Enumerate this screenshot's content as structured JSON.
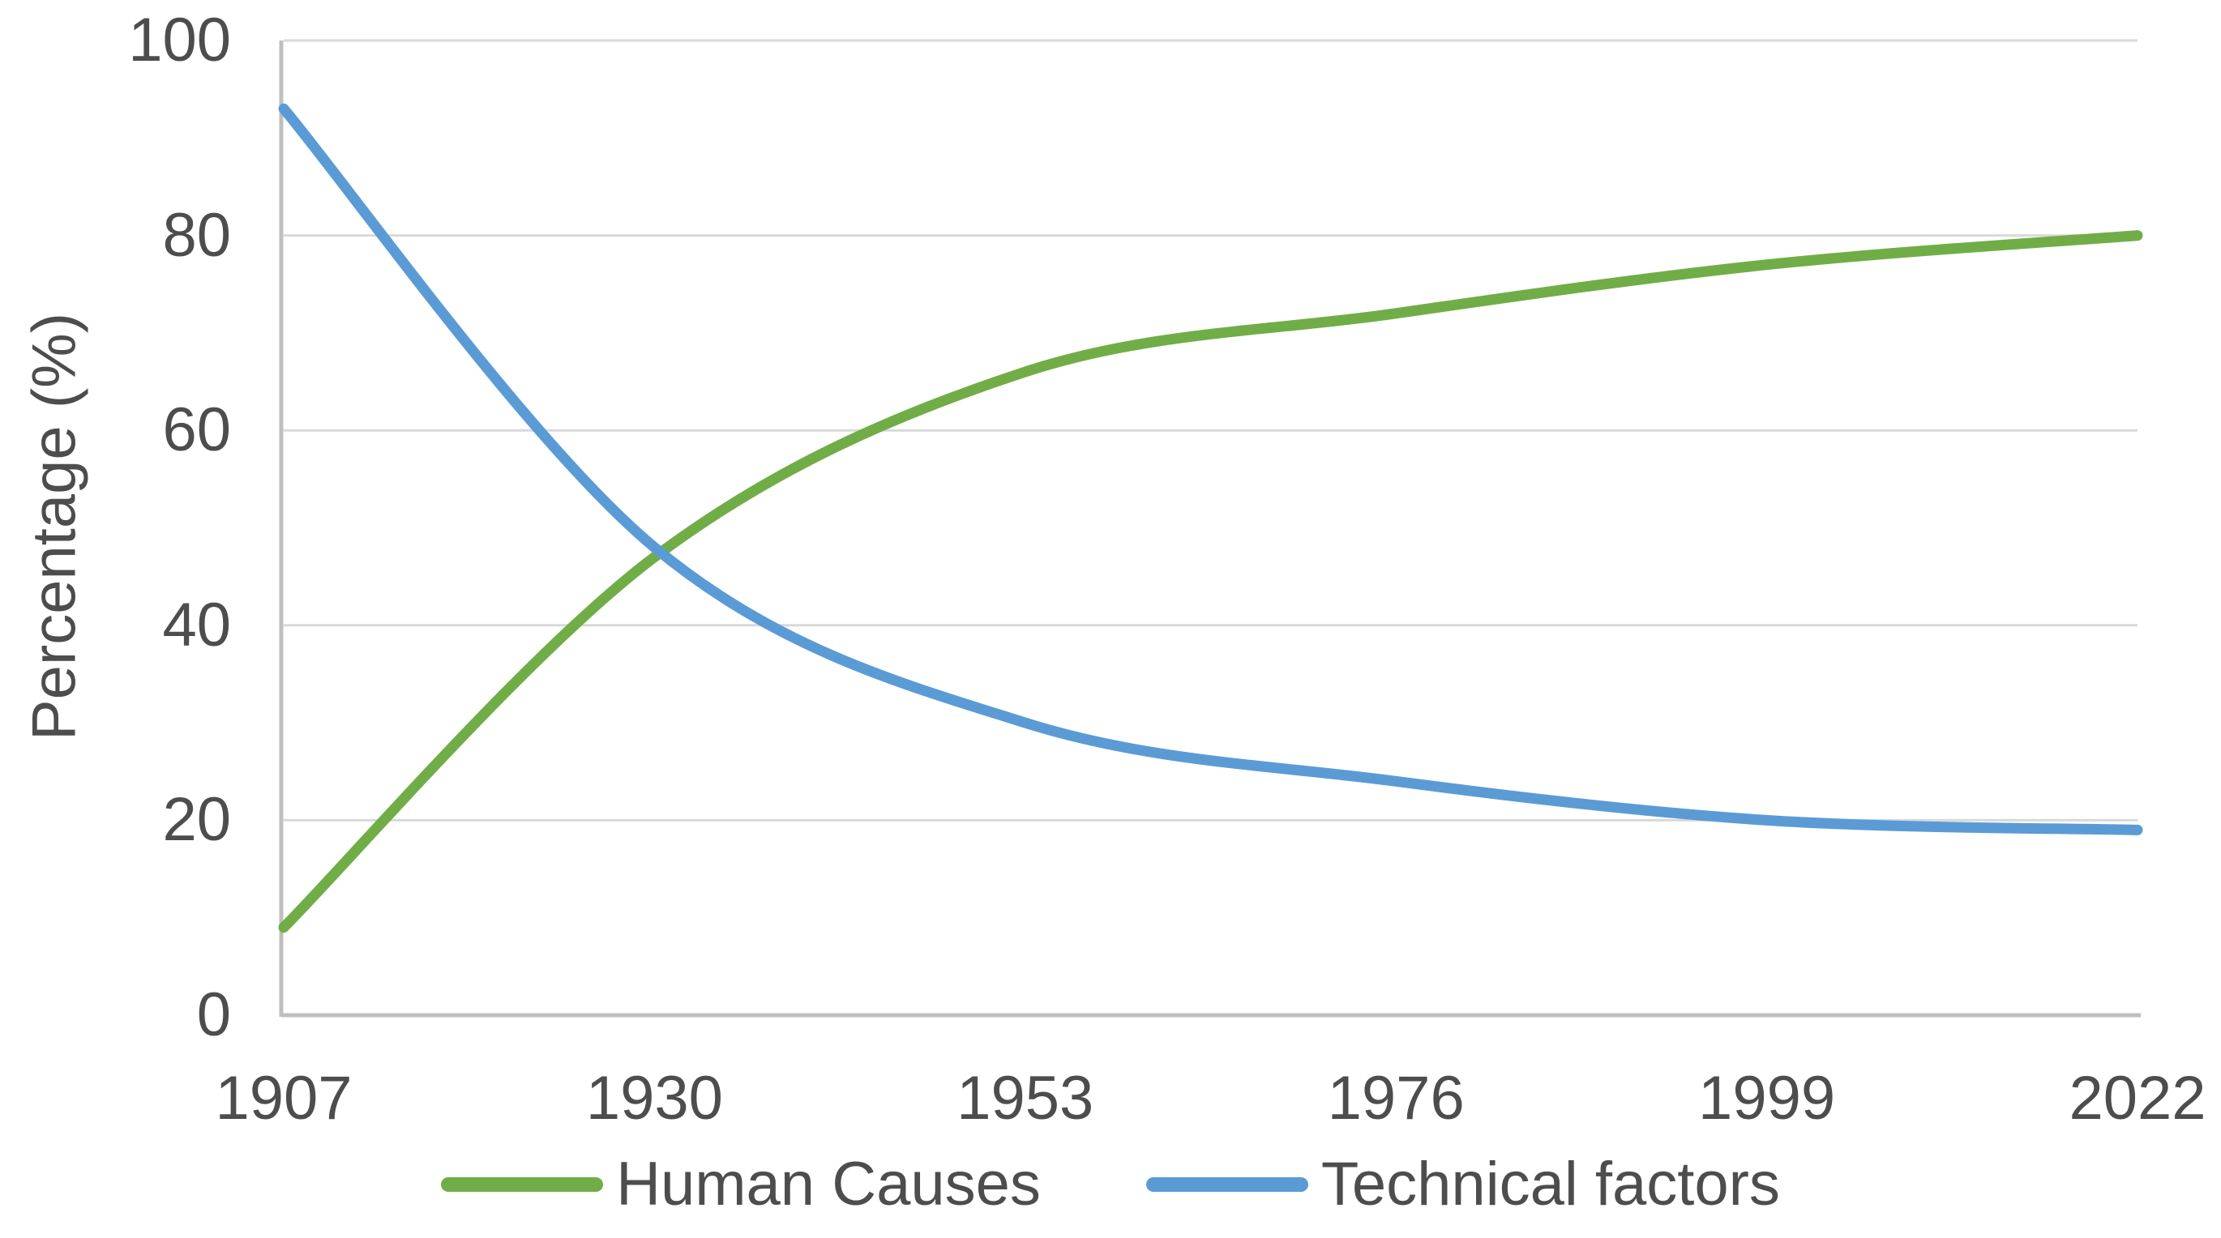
{
  "chart_data": {
    "type": "line",
    "title": "",
    "xlabel": "",
    "ylabel": "Percentage (%)",
    "x": [
      1907,
      1930,
      1953,
      1976,
      1999,
      2022
    ],
    "x_tick_labels": [
      "1907",
      "1930",
      "1953",
      "1976",
      "1999",
      "2022"
    ],
    "y_ticks": [
      0,
      20,
      40,
      60,
      80,
      100
    ],
    "y_tick_labels": [
      "0",
      "20",
      "40",
      "60",
      "80",
      "100"
    ],
    "ylim": [
      0,
      100
    ],
    "grid": "horizontal",
    "smooth": true,
    "legend_position": "bottom",
    "series": [
      {
        "name": "Human Causes",
        "color": "#70AD47",
        "values": [
          9,
          47,
          66,
          72,
          77,
          80
        ]
      },
      {
        "name": "Technical factors",
        "color": "#5B9BD5",
        "values": [
          93,
          48,
          30,
          24,
          20,
          19
        ]
      }
    ],
    "colors": {
      "gridline": "#D9D9D9",
      "axis": "#BFBFBF",
      "text": "#4D4D4D"
    }
  }
}
